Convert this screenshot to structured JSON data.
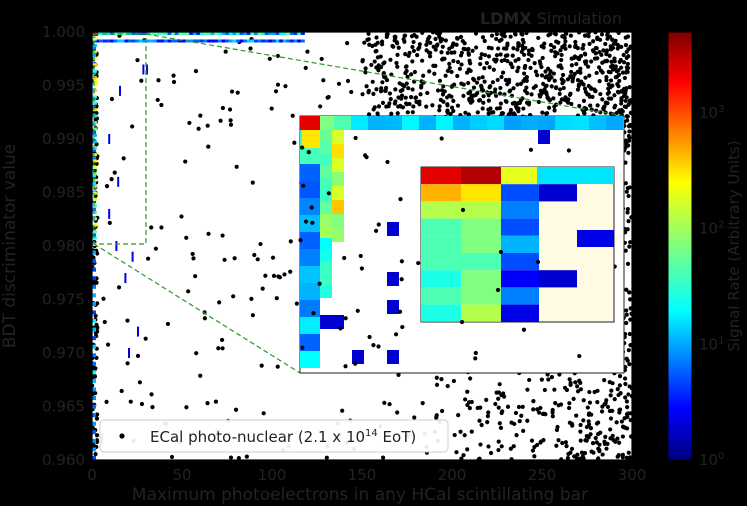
{
  "chart_data": {
    "type": "scatter",
    "title_bold": "LDMX",
    "title_rest": " Simulation",
    "xlabel": "Maximum photoelectrons in any HCal scintillating bar",
    "ylabel": "BDT discriminator value",
    "xlim": [
      0,
      300
    ],
    "ylim": [
      0.96,
      1.0
    ],
    "x_ticks": [
      "0",
      "50",
      "100",
      "150",
      "200",
      "250",
      "300"
    ],
    "y_ticks": [
      "0.960",
      "0.965",
      "0.970",
      "0.975",
      "0.980",
      "0.985",
      "0.990",
      "0.995",
      "1.000"
    ],
    "legend": {
      "label_pre": "ECal photo-nuclear (2.1 x 10",
      "label_sup": "14",
      "label_post": " EoT)",
      "placement": "lower-left"
    },
    "colorbar": {
      "label": "Signal Rate (Arbitrary Units)",
      "scale": "log",
      "range": [
        1,
        5000
      ],
      "ticks": [
        {
          "base": "10",
          "exp": "0",
          "value": 1
        },
        {
          "base": "10",
          "exp": "1",
          "value": 10
        },
        {
          "base": "10",
          "exp": "2",
          "value": 100
        },
        {
          "base": "10",
          "exp": "3",
          "value": 1000
        }
      ]
    },
    "insets": [
      {
        "x_range": [
          0,
          30
        ],
        "y_range": [
          0.98,
          1.0
        ]
      },
      {
        "x_range": [
          0,
          8
        ],
        "y_range": [
          0.99,
          0.999
        ]
      }
    ],
    "series": [
      {
        "kind": "points",
        "color": "#000000"
      },
      {
        "kind": "heatmap",
        "colormap": "jet"
      }
    ]
  }
}
